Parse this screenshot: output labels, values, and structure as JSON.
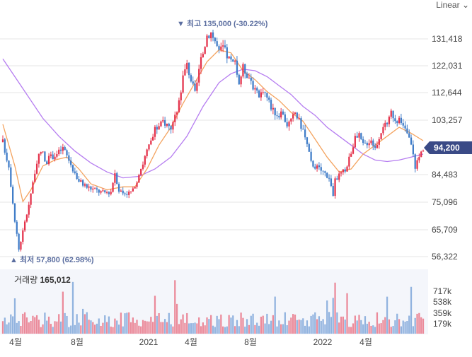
{
  "scale_button": "Linear",
  "chevron": "⌄",
  "colors": {
    "up": "#e4324b",
    "down": "#3f7cc8",
    "ma_short": "#f4a35f",
    "ma_long": "#b57cf0",
    "price_badge": "#3a4a86",
    "grid": "#e6e6e6",
    "volume_bg": "#f4f6fb",
    "annotation": "#5b6ea0"
  },
  "volume": {
    "label": "거래량",
    "value": "165,012",
    "ticks": [
      "717k",
      "538k",
      "359k",
      "179k"
    ]
  },
  "chart_data": {
    "type": "candlestick",
    "current_price": "94,200",
    "y_ticks": [
      "131,418",
      "122,031",
      "112,644",
      "103,257",
      "84,483",
      "75,096",
      "65,709",
      "56,322"
    ],
    "x_ticks": [
      "4월",
      "8월",
      "2021",
      "4월",
      "8월",
      "2022",
      "4월"
    ],
    "high_annotation": "▼ 최고 135,000 (-30.22%)",
    "low_annotation": "▲ 최저 57,800 (62.98%)",
    "ylim": [
      54000,
      139000
    ],
    "price_path": [
      [
        0,
        96000
      ],
      [
        3,
        88000
      ],
      [
        6,
        70000
      ],
      [
        8,
        60000
      ],
      [
        10,
        66000
      ],
      [
        12,
        72000
      ],
      [
        16,
        86000
      ],
      [
        18,
        91000
      ],
      [
        20,
        93000
      ],
      [
        21,
        89000
      ],
      [
        24,
        91000
      ],
      [
        27,
        92000
      ],
      [
        30,
        94000
      ],
      [
        33,
        90000
      ],
      [
        35,
        87000
      ],
      [
        38,
        83000
      ],
      [
        42,
        81000
      ],
      [
        46,
        80000
      ],
      [
        50,
        79000
      ],
      [
        54,
        79500
      ],
      [
        56,
        86000
      ],
      [
        58,
        80000
      ],
      [
        60,
        79000
      ],
      [
        63,
        79000
      ],
      [
        66,
        80000
      ],
      [
        68,
        86000
      ],
      [
        70,
        89000
      ],
      [
        72,
        93000
      ],
      [
        74,
        96000
      ],
      [
        76,
        100000
      ],
      [
        78,
        101000
      ],
      [
        80,
        103000
      ],
      [
        82,
        102000
      ],
      [
        84,
        101000
      ],
      [
        86,
        104000
      ],
      [
        88,
        110000
      ],
      [
        90,
        118000
      ],
      [
        92,
        122000
      ],
      [
        94,
        117000
      ],
      [
        96,
        112000
      ],
      [
        98,
        120000
      ],
      [
        100,
        126000
      ],
      [
        102,
        132000
      ],
      [
        104,
        133000
      ],
      [
        106,
        130000
      ],
      [
        108,
        126000
      ],
      [
        110,
        128000
      ],
      [
        112,
        125000
      ],
      [
        114,
        123000
      ],
      [
        116,
        122000
      ],
      [
        118,
        116000
      ],
      [
        120,
        121000
      ],
      [
        122,
        119000
      ],
      [
        124,
        117000
      ],
      [
        126,
        113000
      ],
      [
        128,
        111000
      ],
      [
        130,
        114000
      ],
      [
        132,
        111000
      ],
      [
        134,
        108000
      ],
      [
        136,
        106000
      ],
      [
        138,
        105000
      ],
      [
        140,
        105000
      ],
      [
        142,
        102000
      ],
      [
        144,
        103000
      ],
      [
        146,
        106000
      ],
      [
        148,
        103000
      ],
      [
        150,
        100000
      ],
      [
        152,
        95000
      ],
      [
        154,
        89000
      ],
      [
        156,
        88000
      ],
      [
        158,
        87000
      ],
      [
        160,
        86000
      ],
      [
        162,
        85000
      ],
      [
        164,
        82000
      ],
      [
        165,
        78000
      ],
      [
        166,
        83000
      ],
      [
        168,
        85000
      ],
      [
        170,
        86000
      ],
      [
        172,
        88000
      ],
      [
        174,
        93000
      ],
      [
        176,
        97000
      ],
      [
        178,
        98000
      ],
      [
        180,
        95000
      ],
      [
        182,
        96000
      ],
      [
        184,
        97000
      ],
      [
        186,
        94000
      ],
      [
        188,
        98000
      ],
      [
        190,
        102000
      ],
      [
        192,
        101000
      ],
      [
        194,
        106000
      ],
      [
        196,
        104000
      ],
      [
        198,
        103000
      ],
      [
        200,
        101000
      ],
      [
        202,
        99000
      ],
      [
        204,
        95000
      ],
      [
        206,
        88000
      ],
      [
        208,
        91000
      ],
      [
        210,
        94200
      ]
    ],
    "ma_short": [
      [
        0,
        102000
      ],
      [
        6,
        88000
      ],
      [
        10,
        76000
      ],
      [
        14,
        80000
      ],
      [
        20,
        88000
      ],
      [
        26,
        90000
      ],
      [
        32,
        91000
      ],
      [
        38,
        87000
      ],
      [
        44,
        82000
      ],
      [
        52,
        80000
      ],
      [
        60,
        81000
      ],
      [
        66,
        81000
      ],
      [
        72,
        87000
      ],
      [
        78,
        95000
      ],
      [
        84,
        101000
      ],
      [
        90,
        109000
      ],
      [
        96,
        116000
      ],
      [
        102,
        123000
      ],
      [
        108,
        127000
      ],
      [
        114,
        126000
      ],
      [
        120,
        120000
      ],
      [
        126,
        117000
      ],
      [
        132,
        113000
      ],
      [
        138,
        110000
      ],
      [
        144,
        106000
      ],
      [
        150,
        103000
      ],
      [
        156,
        97000
      ],
      [
        162,
        91000
      ],
      [
        168,
        86000
      ],
      [
        174,
        87000
      ],
      [
        180,
        92000
      ],
      [
        186,
        95000
      ],
      [
        192,
        98000
      ],
      [
        198,
        101000
      ],
      [
        204,
        99000
      ],
      [
        210,
        96500
      ]
    ],
    "ma_long": [
      [
        0,
        124000
      ],
      [
        10,
        114000
      ],
      [
        20,
        104000
      ],
      [
        28,
        98000
      ],
      [
        36,
        93000
      ],
      [
        44,
        89000
      ],
      [
        52,
        86000
      ],
      [
        60,
        84000
      ],
      [
        68,
        84500
      ],
      [
        76,
        87000
      ],
      [
        84,
        91000
      ],
      [
        92,
        98000
      ],
      [
        100,
        108000
      ],
      [
        108,
        116000
      ],
      [
        114,
        119000
      ],
      [
        120,
        120500
      ],
      [
        126,
        120000
      ],
      [
        132,
        118000
      ],
      [
        138,
        115000
      ],
      [
        144,
        112000
      ],
      [
        150,
        108000
      ],
      [
        156,
        105000
      ],
      [
        162,
        101000
      ],
      [
        168,
        98000
      ],
      [
        174,
        95000
      ],
      [
        180,
        92000
      ],
      [
        186,
        90000
      ],
      [
        192,
        89500
      ],
      [
        198,
        90000
      ],
      [
        204,
        91000
      ],
      [
        210,
        92000
      ]
    ]
  }
}
